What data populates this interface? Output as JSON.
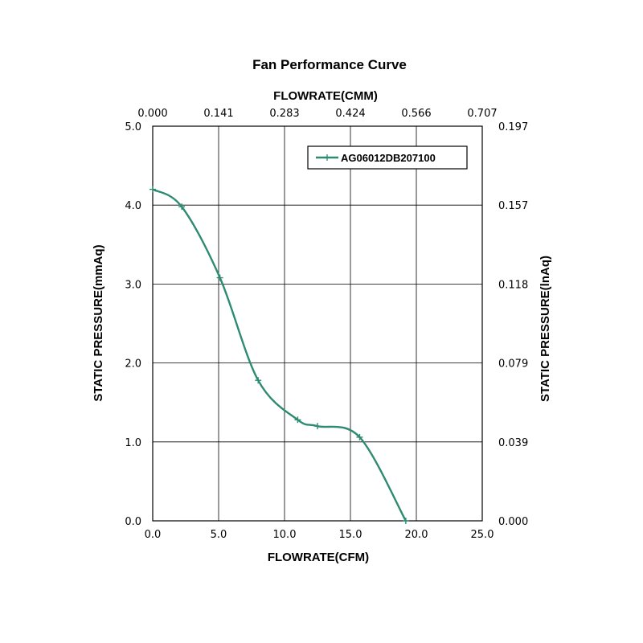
{
  "chart_data": {
    "type": "line",
    "title": "Fan Performance Curve",
    "xlabel": "FLOWRATE(CFM)",
    "x2label": "FLOWRATE(CMM)",
    "ylabel": "STATIC PRESSURE(mmAq)",
    "y2label": "STATIC PRESSURE(lnAq)",
    "xlim": [
      0,
      25
    ],
    "ylim": [
      0,
      5
    ],
    "x_ticks": [
      "0.0",
      "5.0",
      "10.0",
      "15.0",
      "20.0",
      "25.0"
    ],
    "y_ticks": [
      "0.0",
      "1.0",
      "2.0",
      "3.0",
      "4.0",
      "5.0"
    ],
    "x2_ticks": [
      "0.000",
      "0.141",
      "0.283",
      "0.424",
      "0.566",
      "0.707"
    ],
    "y2_ticks": [
      "0.000",
      "0.039",
      "0.079",
      "0.118",
      "0.157",
      "0.197"
    ],
    "grid": true,
    "legend_position": "top-right",
    "series": [
      {
        "name": "AG06012DB207100",
        "color": "#2e8b72",
        "x": [
          0.0,
          2.2,
          5.1,
          8.0,
          11.0,
          12.5,
          15.7,
          19.2
        ],
        "y": [
          4.2,
          3.98,
          3.08,
          1.78,
          1.28,
          1.2,
          1.06,
          0.0
        ]
      }
    ]
  }
}
